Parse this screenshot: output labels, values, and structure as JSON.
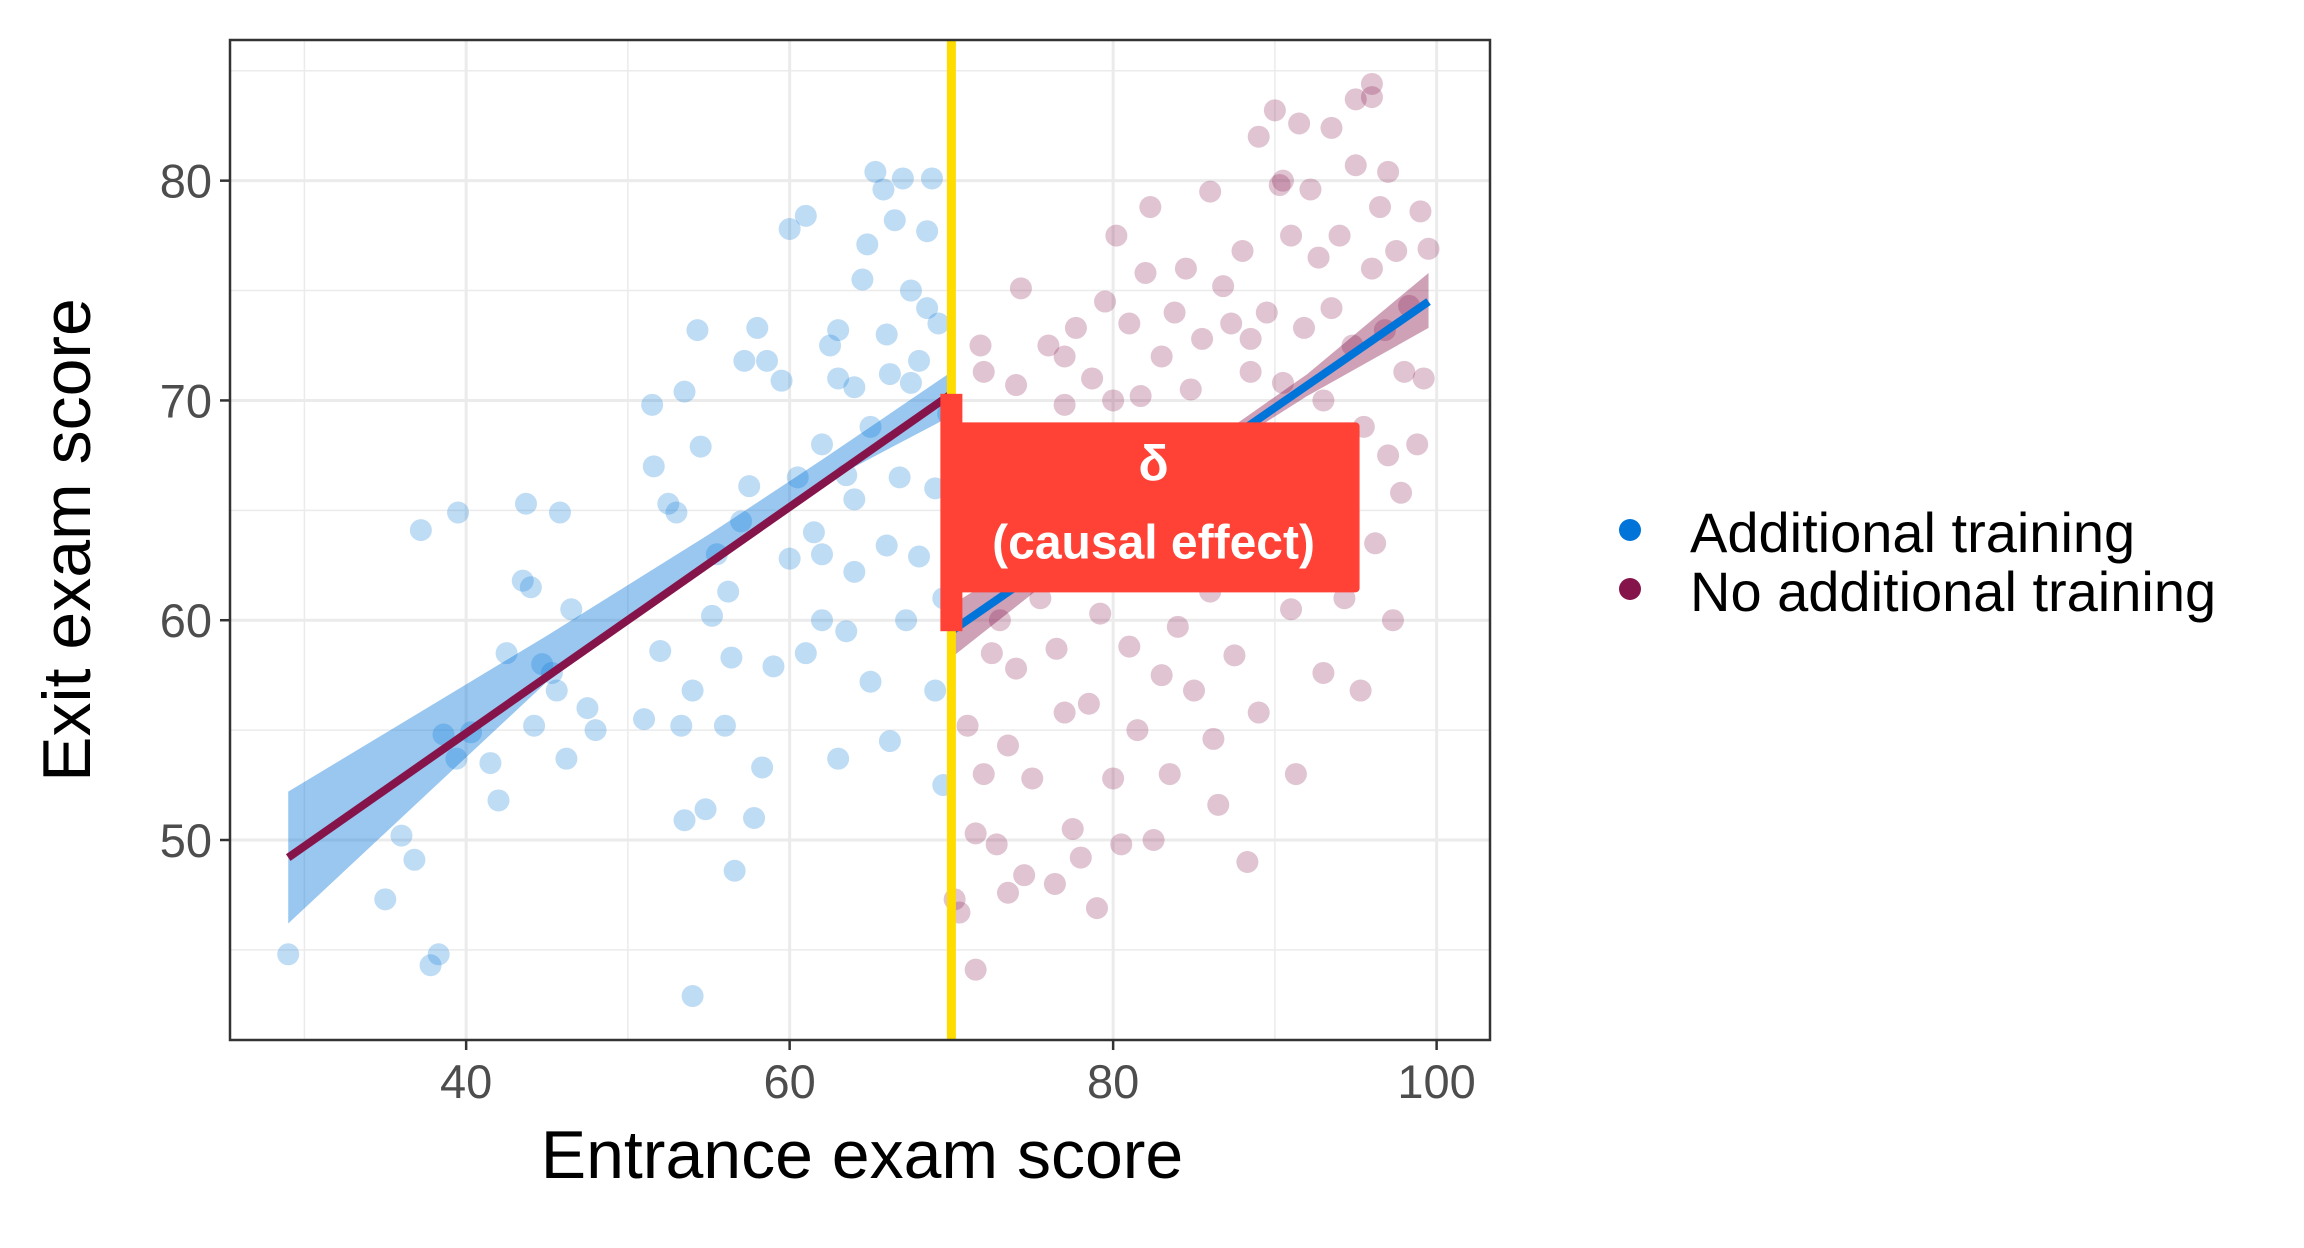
{
  "chart_data": {
    "type": "scatter",
    "title": "",
    "xlabel": "Entrance exam score",
    "ylabel": "Exit exam score",
    "xlim": [
      25.4,
      103.3
    ],
    "ylim": [
      40.9,
      86.4
    ],
    "x_ticks": [
      40,
      60,
      80,
      100
    ],
    "y_ticks": [
      50,
      60,
      70,
      80
    ],
    "x_tick_labels": [
      "40",
      "60",
      "80",
      "100"
    ],
    "y_tick_labels": [
      "50",
      "60",
      "70",
      "80"
    ],
    "grid": true,
    "legend_placement": "right",
    "cutoff": 70,
    "colors": {
      "additional": "#0074D9",
      "none": "#85144B",
      "cutoff": "#FFDC00",
      "effect": "#FF4136"
    },
    "annotation": {
      "symbol": "δ",
      "text": "(causal effect)",
      "x": 82.5,
      "y": 65,
      "effect_range": [
        59.5,
        70.3
      ]
    },
    "series": [
      {
        "name": "Additional training",
        "color": "#0074D9",
        "points": [
          [
            29,
            44.8
          ],
          [
            35,
            47.3
          ],
          [
            36,
            50.2
          ],
          [
            36.8,
            49.1
          ],
          [
            37.2,
            64.1
          ],
          [
            37.8,
            44.3
          ],
          [
            38.3,
            44.8
          ],
          [
            39.5,
            64.9
          ],
          [
            38.6,
            54.8
          ],
          [
            39.4,
            53.7
          ],
          [
            40.3,
            54.9
          ],
          [
            41.5,
            53.5
          ],
          [
            42,
            51.8
          ],
          [
            42.5,
            58.5
          ],
          [
            43.5,
            61.8
          ],
          [
            43.7,
            65.3
          ],
          [
            44,
            61.5
          ],
          [
            44.2,
            55.2
          ],
          [
            44.7,
            58
          ],
          [
            45.3,
            57.6
          ],
          [
            45.6,
            56.8
          ],
          [
            45.8,
            64.9
          ],
          [
            46.2,
            53.7
          ],
          [
            46.5,
            60.5
          ],
          [
            47.5,
            56
          ],
          [
            48,
            55
          ],
          [
            51,
            55.5
          ],
          [
            51.5,
            69.8
          ],
          [
            51.6,
            67
          ],
          [
            52,
            58.6
          ],
          [
            52.5,
            65.3
          ],
          [
            53,
            64.9
          ],
          [
            53.3,
            55.2
          ],
          [
            53.5,
            70.4
          ],
          [
            53.5,
            50.9
          ],
          [
            54,
            42.9
          ],
          [
            54,
            56.8
          ],
          [
            54.3,
            73.2
          ],
          [
            54.5,
            67.9
          ],
          [
            54.8,
            51.4
          ],
          [
            55.2,
            60.2
          ],
          [
            55.5,
            63
          ],
          [
            56,
            55.2
          ],
          [
            56.2,
            61.3
          ],
          [
            56.4,
            58.3
          ],
          [
            56.6,
            48.6
          ],
          [
            57,
            64.5
          ],
          [
            57.2,
            71.8
          ],
          [
            57.5,
            66.1
          ],
          [
            57.8,
            51
          ],
          [
            58,
            73.3
          ],
          [
            58.3,
            53.3
          ],
          [
            58.6,
            71.8
          ],
          [
            59,
            57.9
          ],
          [
            59.5,
            70.9
          ],
          [
            60,
            62.8
          ],
          [
            60,
            77.8
          ],
          [
            60.5,
            66.5
          ],
          [
            61,
            78.4
          ],
          [
            61,
            58.5
          ],
          [
            61.5,
            64
          ],
          [
            62,
            63
          ],
          [
            62,
            68
          ],
          [
            62.5,
            72.5
          ],
          [
            63,
            73.2
          ],
          [
            63,
            53.7
          ],
          [
            63.5,
            59.5
          ],
          [
            63.5,
            66.6
          ],
          [
            64,
            70.6
          ],
          [
            64,
            62.2
          ],
          [
            64.5,
            75.5
          ],
          [
            64.8,
            77.1
          ],
          [
            65,
            68.8
          ],
          [
            65,
            57.2
          ],
          [
            65.3,
            80.4
          ],
          [
            65.8,
            79.6
          ],
          [
            66,
            73
          ],
          [
            66,
            63.4
          ],
          [
            66.2,
            54.5
          ],
          [
            66.5,
            78.2
          ],
          [
            66.8,
            66.5
          ],
          [
            67,
            80.1
          ],
          [
            67.2,
            60
          ],
          [
            67.5,
            75
          ],
          [
            67.5,
            70.8
          ],
          [
            68,
            71.8
          ],
          [
            68,
            62.9
          ],
          [
            68.5,
            77.7
          ],
          [
            68.8,
            80.1
          ],
          [
            69,
            56.8
          ],
          [
            69,
            66
          ],
          [
            69.2,
            73.5
          ],
          [
            69.5,
            61
          ],
          [
            69.8,
            69.4
          ],
          [
            69.5,
            52.5
          ],
          [
            68.5,
            74.2
          ],
          [
            66.2,
            71.2
          ],
          [
            64,
            65.5
          ],
          [
            62,
            60
          ],
          [
            63,
            71
          ]
        ],
        "fit_line": [
          [
            29,
            49.2
          ],
          [
            70,
            70.3
          ]
        ],
        "fit_line_color": "#85144B",
        "ribbon": [
          [
            29,
            46.2,
            52.2
          ],
          [
            45,
            57.2,
            59.3
          ],
          [
            55,
            62.6,
            63.9
          ],
          [
            62,
            66.2,
            67.3
          ],
          [
            70,
            69.3,
            71.3
          ]
        ]
      },
      {
        "name": "No additional training",
        "color": "#85144B",
        "points": [
          [
            70.2,
            47.3
          ],
          [
            70.5,
            46.7
          ],
          [
            71.5,
            44.1
          ],
          [
            71,
            55.2
          ],
          [
            71.5,
            50.3
          ],
          [
            71.8,
            72.5
          ],
          [
            72,
            53
          ],
          [
            72.5,
            58.5
          ],
          [
            72.8,
            49.8
          ],
          [
            73,
            62.5
          ],
          [
            73.5,
            47.6
          ],
          [
            73.5,
            54.3
          ],
          [
            74,
            70.7
          ],
          [
            74,
            57.8
          ],
          [
            74.3,
            75.1
          ],
          [
            74.5,
            48.4
          ],
          [
            75,
            64.5
          ],
          [
            75,
            52.8
          ],
          [
            75.5,
            61
          ],
          [
            75.8,
            67
          ],
          [
            76,
            72.5
          ],
          [
            76.4,
            48
          ],
          [
            76.5,
            58.7
          ],
          [
            77,
            55.8
          ],
          [
            77,
            69.8
          ],
          [
            77.5,
            50.5
          ],
          [
            77.7,
            73.3
          ],
          [
            78,
            62.6
          ],
          [
            78,
            49.2
          ],
          [
            78.5,
            56.2
          ],
          [
            78.7,
            71
          ],
          [
            79,
            46.9
          ],
          [
            79.2,
            60.3
          ],
          [
            79.5,
            74.5
          ],
          [
            80,
            52.8
          ],
          [
            80,
            67.5
          ],
          [
            80.2,
            77.5
          ],
          [
            80.5,
            49.8
          ],
          [
            80.8,
            64
          ],
          [
            81,
            58.8
          ],
          [
            81,
            73.5
          ],
          [
            81.5,
            55
          ],
          [
            81.7,
            70.2
          ],
          [
            82,
            75.8
          ],
          [
            82,
            62.5
          ],
          [
            82.3,
            78.8
          ],
          [
            82.5,
            50
          ],
          [
            83,
            57.5
          ],
          [
            83,
            68.5
          ],
          [
            83.5,
            53
          ],
          [
            83.8,
            74
          ],
          [
            84,
            63
          ],
          [
            84,
            59.7
          ],
          [
            84.5,
            76
          ],
          [
            84.8,
            70.5
          ],
          [
            85,
            56.8
          ],
          [
            85.3,
            66.5
          ],
          [
            85.5,
            72.8
          ],
          [
            86,
            79.5
          ],
          [
            86,
            61.3
          ],
          [
            86.2,
            54.6
          ],
          [
            86.5,
            51.6
          ],
          [
            86.8,
            75.2
          ],
          [
            87,
            68
          ],
          [
            87.3,
            73.5
          ],
          [
            87.5,
            58.4
          ],
          [
            88,
            76.8
          ],
          [
            88,
            62.8
          ],
          [
            88.3,
            49
          ],
          [
            88.5,
            71.3
          ],
          [
            89,
            82
          ],
          [
            89,
            55.8
          ],
          [
            89.2,
            67.8
          ],
          [
            89.5,
            74
          ],
          [
            90,
            83.2
          ],
          [
            90,
            65
          ],
          [
            90.3,
            79.8
          ],
          [
            90.5,
            70.8
          ],
          [
            91,
            77.5
          ],
          [
            91,
            60.5
          ],
          [
            91.3,
            53
          ],
          [
            91.5,
            82.6
          ],
          [
            91.8,
            73.3
          ],
          [
            92,
            67.6
          ],
          [
            92.2,
            79.6
          ],
          [
            92.5,
            63.5
          ],
          [
            92.7,
            76.5
          ],
          [
            93,
            57.6
          ],
          [
            93,
            70
          ],
          [
            93.5,
            82.4
          ],
          [
            93.5,
            74.2
          ],
          [
            94,
            77.5
          ],
          [
            94,
            66.8
          ],
          [
            94.3,
            61
          ],
          [
            94.8,
            72.5
          ],
          [
            95,
            83.7
          ],
          [
            95,
            80.7
          ],
          [
            95.3,
            56.8
          ],
          [
            95.5,
            68.8
          ],
          [
            96,
            84.4
          ],
          [
            96,
            76
          ],
          [
            96.2,
            63.5
          ],
          [
            96.5,
            78.8
          ],
          [
            96.8,
            73.2
          ],
          [
            97,
            80.4
          ],
          [
            97,
            67.5
          ],
          [
            97.3,
            60
          ],
          [
            97.5,
            76.8
          ],
          [
            97.8,
            65.8
          ],
          [
            98,
            71.3
          ],
          [
            98.3,
            74.3
          ],
          [
            98.8,
            68
          ],
          [
            99,
            78.6
          ],
          [
            99.2,
            71
          ],
          [
            99.5,
            76.9
          ],
          [
            96,
            83.8
          ],
          [
            90.5,
            80
          ],
          [
            88.5,
            72.8
          ],
          [
            85.5,
            68.5
          ],
          [
            83,
            72
          ],
          [
            80,
            70
          ],
          [
            76,
            66
          ],
          [
            73,
            60
          ],
          [
            71.5,
            62
          ],
          [
            72,
            71.3
          ],
          [
            77,
            72
          ]
        ],
        "fit_line": [
          [
            70,
            59.5
          ],
          [
            99.5,
            74.5
          ]
        ],
        "fit_line_color": "#0074D9",
        "ribbon": [
          [
            70,
            58.3,
            60.7
          ],
          [
            80,
            64.1,
            65.2
          ],
          [
            86,
            67.4,
            68.1
          ],
          [
            92,
            70.2,
            71.2
          ],
          [
            99.5,
            73.3,
            75.8
          ]
        ]
      }
    ]
  }
}
